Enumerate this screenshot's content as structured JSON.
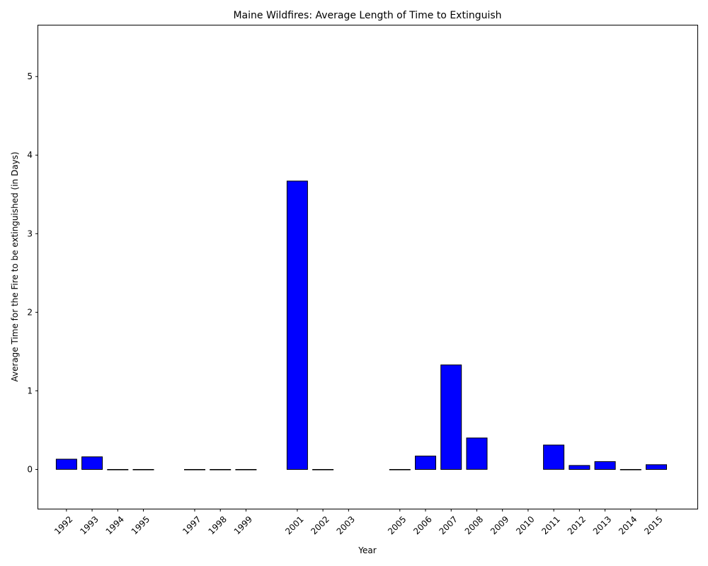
{
  "chart_data": {
    "type": "bar",
    "title": "Maine Wildfires: Average Length of Time to Extinguish",
    "xlabel": "Year",
    "ylabel": "Average Time for the Fire to be extinguished (in Days)",
    "ylim": [
      -0.5,
      5.65
    ],
    "xlim": [
      1990.9,
      2016.6
    ],
    "yticks": [
      0,
      1,
      2,
      3,
      4,
      5
    ],
    "xticks": [
      "1992",
      "1993",
      "1994",
      "1995",
      "1997",
      "1998",
      "1999",
      "2001",
      "2002",
      "2003",
      "2005",
      "2006",
      "2007",
      "2008",
      "2009",
      "2010",
      "2011",
      "2012",
      "2013",
      "2014",
      "2015"
    ],
    "grid": false,
    "legend": "none",
    "bar_color": "#0000ff",
    "edge_color": "#000000",
    "bar_width": 0.8,
    "bars": [
      {
        "x": 1992,
        "value": 0.13
      },
      {
        "x": 1993,
        "value": 0.16
      },
      {
        "x": 1994,
        "value": 0.0
      },
      {
        "x": 1995,
        "value": 0.0
      },
      {
        "x": 1997,
        "value": 0.0
      },
      {
        "x": 1998,
        "value": 0.0
      },
      {
        "x": 1999,
        "value": 0.0
      },
      {
        "x": 2001,
        "value": 3.67
      },
      {
        "x": 2002,
        "value": 0.0
      },
      {
        "x": 2005,
        "value": 0.0
      },
      {
        "x": 2006,
        "value": 0.17
      },
      {
        "x": 2007,
        "value": 1.33
      },
      {
        "x": 2008,
        "value": 0.4
      },
      {
        "x": 2011,
        "value": 0.31
      },
      {
        "x": 2012,
        "value": 0.05
      },
      {
        "x": 2013,
        "value": 0.1
      },
      {
        "x": 2014,
        "value": 0.0
      },
      {
        "x": 2015,
        "value": 0.06
      }
    ]
  }
}
